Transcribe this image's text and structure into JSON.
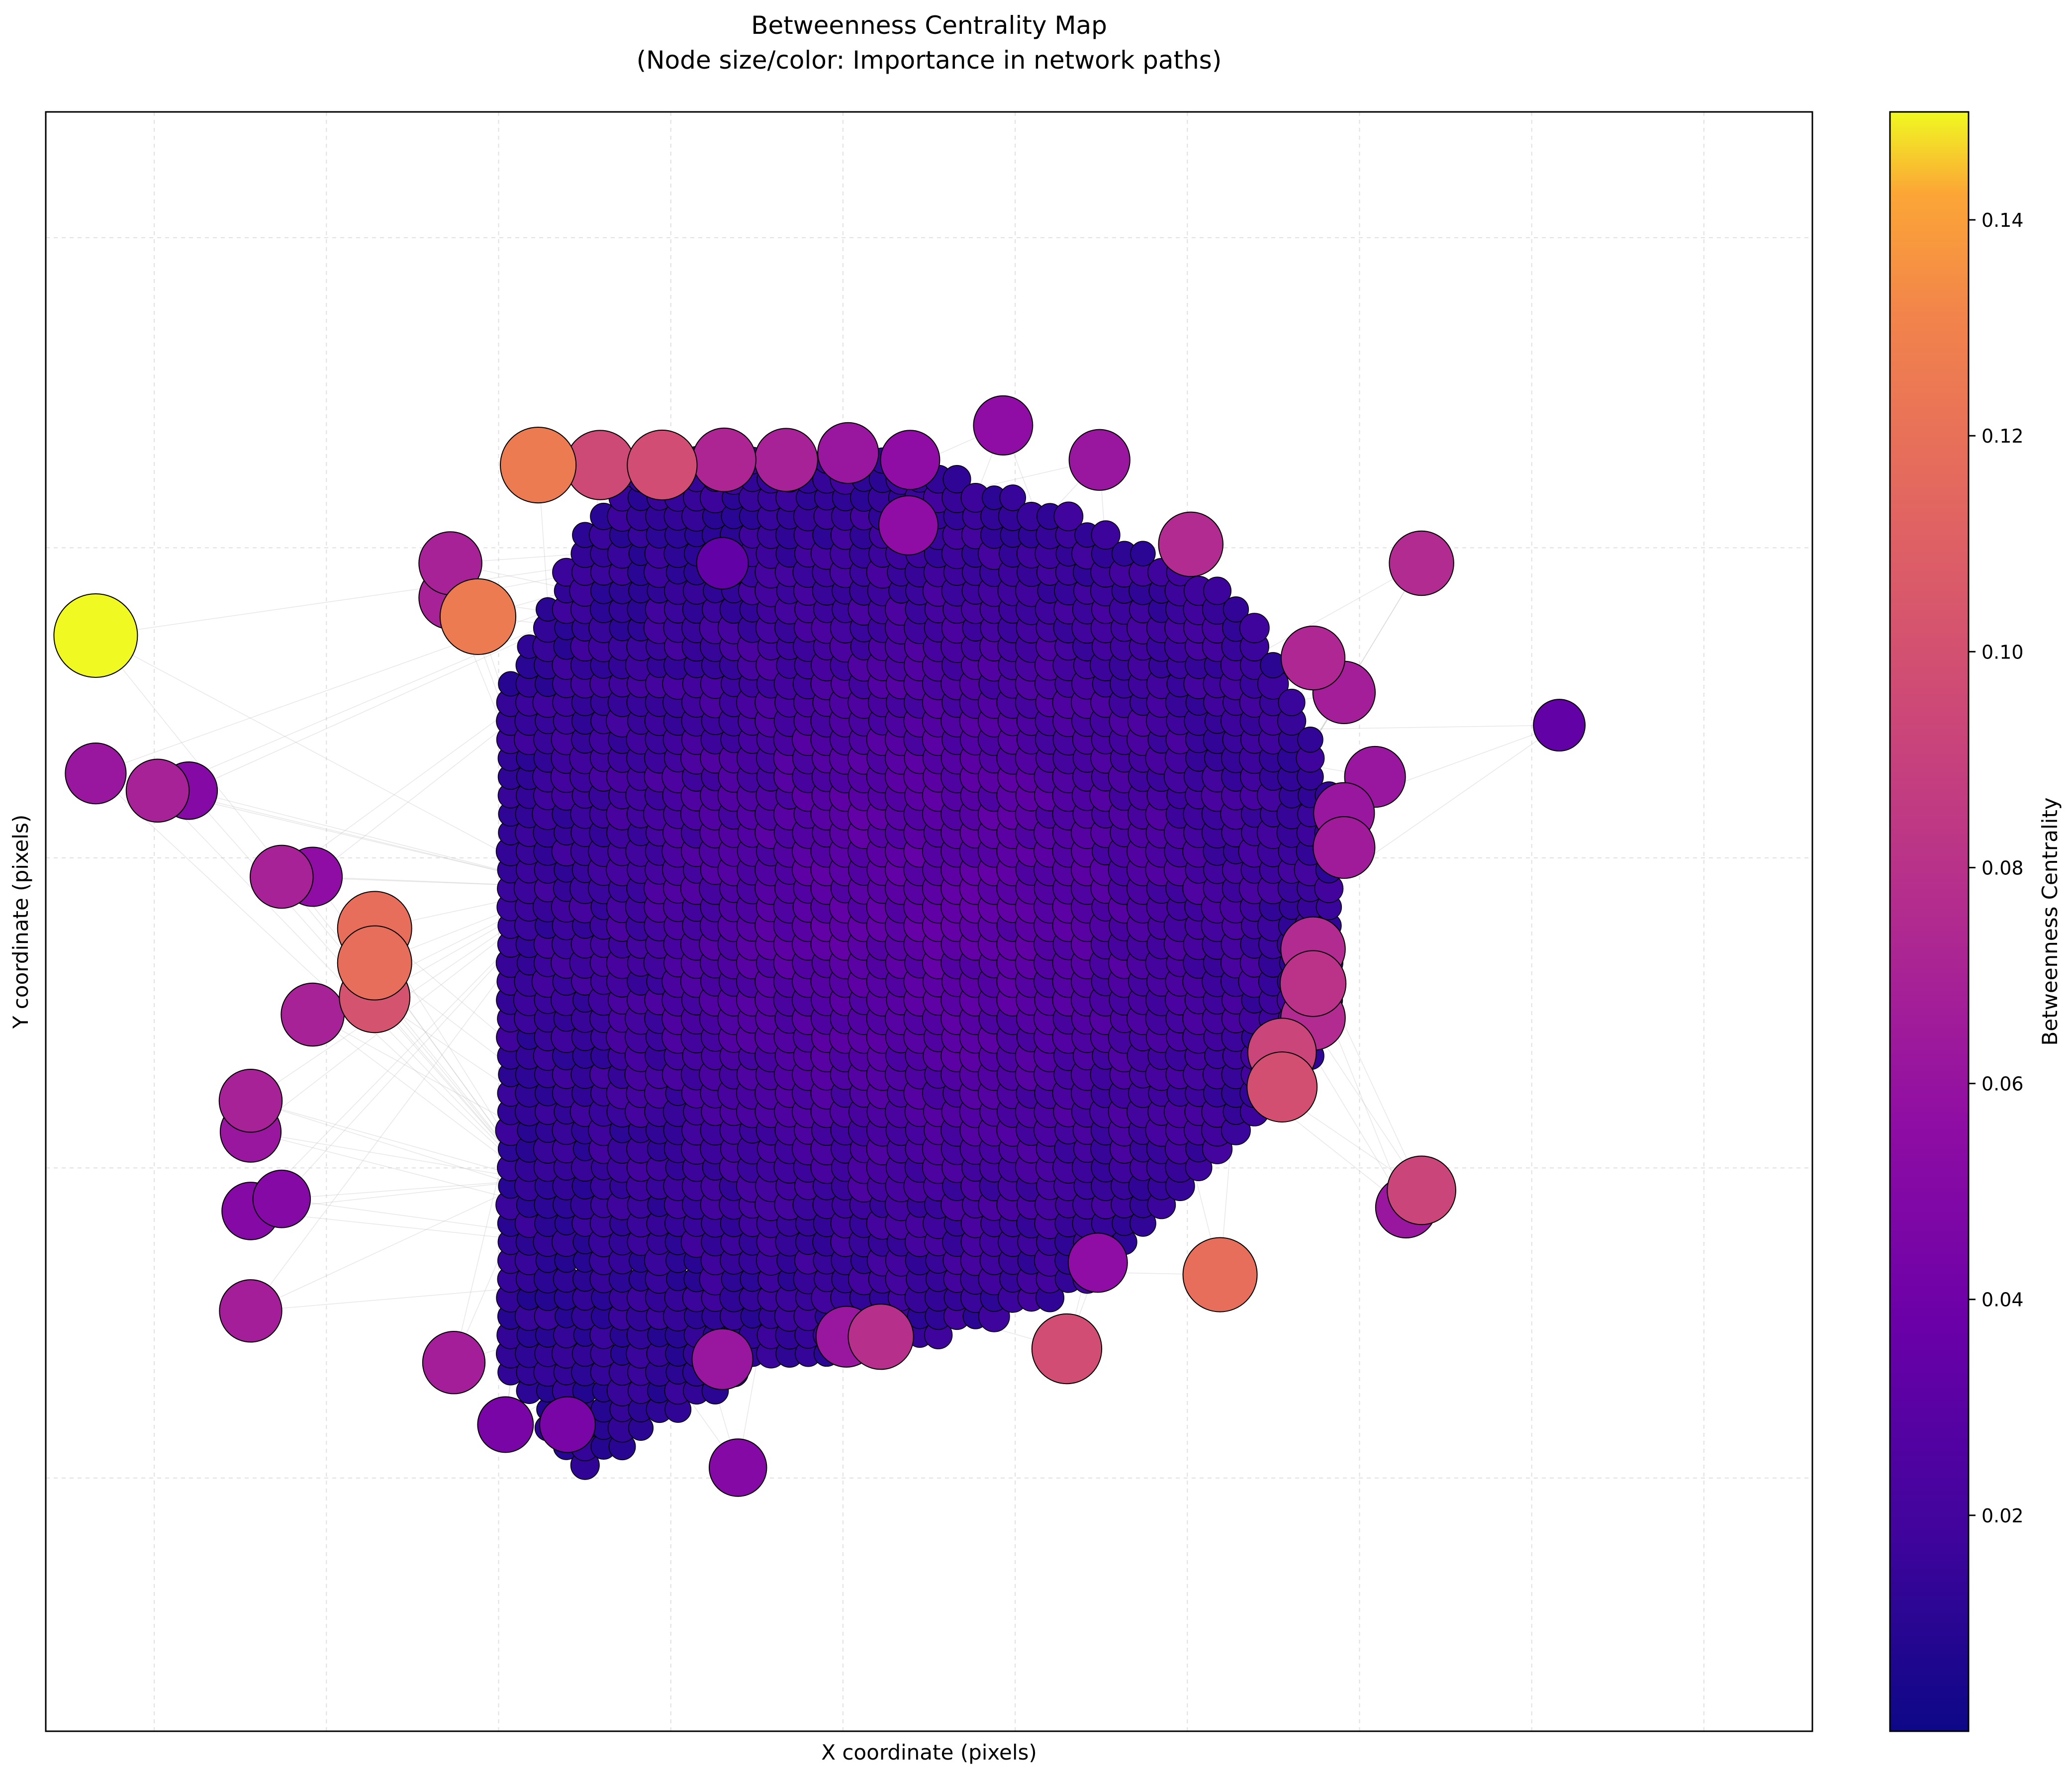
{
  "chart_data": {
    "type": "scatter",
    "title": "Betweenness Centrality Map",
    "subtitle": "(Node size/color: Importance in network paths)",
    "xlabel": "X coordinate (pixels)",
    "ylabel": "Y coordinate (pixels)",
    "x_ticks_shown": false,
    "y_ticks_shown": false,
    "grid": true,
    "colormap": "plasma",
    "colorbar": {
      "label": "Betweenness Centrality",
      "range": [
        0.0,
        0.15
      ],
      "ticks": [
        "0.02",
        "0.04",
        "0.06",
        "0.08",
        "0.10",
        "0.12",
        "0.14"
      ],
      "tick_values": [
        0.02,
        0.04,
        0.06,
        0.08,
        0.1,
        0.12,
        0.14
      ]
    },
    "cluster_grid": {
      "x_range": [
        -0.93,
        4.87
      ],
      "y_range": [
        -2.78,
        3.4
      ],
      "step": 0.054
    },
    "outer_points": [
      {
        "x": -3.34,
        "y": 2.36,
        "v": 0.15
      },
      {
        "x": -1.12,
        "y": 2.47,
        "v": 0.112
      },
      {
        "x": -0.77,
        "y": 3.35,
        "v": 0.112
      },
      {
        "x": -0.41,
        "y": 3.35,
        "v": 0.085
      },
      {
        "x": -0.05,
        "y": 3.35,
        "v": 0.087
      },
      {
        "x": 0.31,
        "y": 3.38,
        "v": 0.064
      },
      {
        "x": 0.67,
        "y": 3.38,
        "v": 0.062
      },
      {
        "x": 1.03,
        "y": 3.42,
        "v": 0.055
      },
      {
        "x": 1.39,
        "y": 3.38,
        "v": 0.05
      },
      {
        "x": 1.93,
        "y": 3.58,
        "v": 0.05
      },
      {
        "x": 2.49,
        "y": 3.38,
        "v": 0.055
      },
      {
        "x": 3.02,
        "y": 2.89,
        "v": 0.067
      },
      {
        "x": 4.36,
        "y": 2.78,
        "v": 0.067
      },
      {
        "x": 3.73,
        "y": 2.23,
        "v": 0.065
      },
      {
        "x": 3.91,
        "y": 2.03,
        "v": 0.06
      },
      {
        "x": 4.09,
        "y": 1.54,
        "v": 0.055
      },
      {
        "x": 5.16,
        "y": 1.84,
        "v": 0.03
      },
      {
        "x": 3.91,
        "y": 1.33,
        "v": 0.055
      },
      {
        "x": 3.91,
        "y": 1.13,
        "v": 0.058
      },
      {
        "x": 3.73,
        "y": 0.54,
        "v": 0.067
      },
      {
        "x": 3.73,
        "y": 0.34,
        "v": 0.072
      },
      {
        "x": 3.73,
        "y": 0.14,
        "v": 0.067
      },
      {
        "x": 3.55,
        "y": -0.06,
        "v": 0.082
      },
      {
        "x": 3.55,
        "y": -0.26,
        "v": 0.088
      },
      {
        "x": 4.36,
        "y": -0.86,
        "v": 0.082
      },
      {
        "x": 4.27,
        "y": -0.96,
        "v": 0.055
      },
      {
        "x": 3.19,
        "y": -1.35,
        "v": 0.105
      },
      {
        "x": 2.3,
        "y": -1.78,
        "v": 0.087
      },
      {
        "x": 2.48,
        "y": -1.28,
        "v": 0.05
      },
      {
        "x": 1.22,
        "y": -1.71,
        "v": 0.07
      },
      {
        "x": 1.02,
        "y": -1.71,
        "v": 0.055
      },
      {
        "x": 0.3,
        "y": -1.84,
        "v": 0.055
      },
      {
        "x": 0.39,
        "y": -2.47,
        "v": 0.045
      },
      {
        "x": -0.6,
        "y": -2.22,
        "v": 0.04
      },
      {
        "x": -0.96,
        "y": -2.22,
        "v": 0.04
      },
      {
        "x": -1.26,
        "y": -1.86,
        "v": 0.06
      },
      {
        "x": -2.44,
        "y": -1.56,
        "v": 0.06
      },
      {
        "x": -2.44,
        "y": -0.98,
        "v": 0.045
      },
      {
        "x": -2.26,
        "y": -0.91,
        "v": 0.045
      },
      {
        "x": -2.44,
        "y": -0.52,
        "v": 0.055
      },
      {
        "x": -2.44,
        "y": -0.34,
        "v": 0.062
      },
      {
        "x": -2.08,
        "y": 0.16,
        "v": 0.062
      },
      {
        "x": -1.72,
        "y": 0.66,
        "v": 0.105
      },
      {
        "x": -1.72,
        "y": 0.46,
        "v": 0.105
      },
      {
        "x": -1.72,
        "y": 0.26,
        "v": 0.09
      },
      {
        "x": -2.26,
        "y": 0.96,
        "v": 0.062
      },
      {
        "x": -2.08,
        "y": 0.96,
        "v": 0.05
      },
      {
        "x": -3.34,
        "y": 1.56,
        "v": 0.055
      },
      {
        "x": -2.98,
        "y": 1.46,
        "v": 0.062
      },
      {
        "x": -2.8,
        "y": 1.46,
        "v": 0.045
      },
      {
        "x": -1.28,
        "y": 2.58,
        "v": 0.062
      },
      {
        "x": -1.28,
        "y": 2.78,
        "v": 0.062
      },
      {
        "x": 1.38,
        "y": 3.0,
        "v": 0.05
      },
      {
        "x": 0.3,
        "y": 2.78,
        "v": 0.03
      }
    ]
  }
}
